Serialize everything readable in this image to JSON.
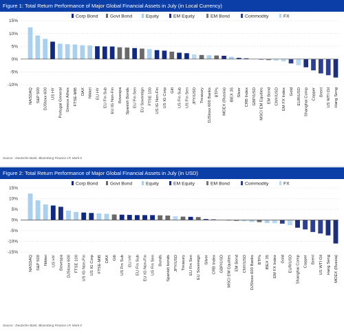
{
  "colors": {
    "title_bg": "#0c3ea8",
    "corp_bond": "#102a83",
    "govt_bond": "#6a6a6a",
    "equity": "#a9d0ee",
    "em_equity": "#1b2f7e",
    "em_bond": "#767676",
    "commodity": "#2e3f8f",
    "fx": "#b7d9f3"
  },
  "panels": [
    {
      "title": "Figure 1: Total Return Performance of Major Global Financial Assets in July (in Local Currency)",
      "source": "Source : Deutsche Bank, Bloomberg Finance LP, Mark-it"
    },
    {
      "title": "Figure 2: Total Return Performance of Major Global Financial Assets in July (in USD)",
      "source": "Source : Deutsche Bank, Bloomberg Finance LP, Mark-it"
    }
  ],
  "chart_data": [
    {
      "type": "bar",
      "title": "Figure 1: Total Return Performance of Major Global Financial Assets in July (in Local Currency)",
      "ylim": [
        -10,
        15
      ],
      "yticks": [
        -10,
        -5,
        0,
        5,
        10,
        15
      ],
      "ytick_labels": [
        "-10%",
        "-5%",
        "0%",
        "5%",
        "10%",
        "15%"
      ],
      "grid": true,
      "legend_position": "top",
      "legend": [
        {
          "key": "corp_bond",
          "label": "Corp Bond"
        },
        {
          "key": "govt_bond",
          "label": "Govt Bond"
        },
        {
          "key": "equity",
          "label": "Equity"
        },
        {
          "key": "em_equity",
          "label": "EM Equity"
        },
        {
          "key": "em_bond",
          "label": "EM Bond"
        },
        {
          "key": "commodity",
          "label": "Commodity"
        },
        {
          "key": "fx",
          "label": "FX"
        }
      ],
      "categories": [
        "NASDAQ",
        "S&P 500",
        "DJStoxx 600",
        "US HY",
        "Portugal General",
        "Greece Athex",
        "FTSE-MIB",
        "DAX",
        "Nikkei",
        "EU HY",
        "EU Fin Sub",
        "EU IG Non-Fin",
        "Bovespa",
        "Spanish Bonds",
        "EU Fin Sen",
        "EU Sovereign",
        "FTSE 100",
        "US IG Non-Fin",
        "US IG Corp",
        "Gilt",
        "US Fin Sub",
        "US Fin Sen",
        "JPY/USD",
        "Treasury",
        "DJStoxx 600 Banks",
        "BTPs",
        "MOEX (Russia)",
        "IBEX 35",
        "Silver",
        "CRB Index",
        "GBP/USD",
        "MSCI EM Equities",
        "EM Bond",
        "CNY/USD",
        "EM FX Index",
        "Gold",
        "EUR/USD",
        "Shanghai Comp",
        "Copper",
        "Brent",
        "US WTI Oil",
        "Hang Seng"
      ],
      "groups": [
        "equity",
        "equity",
        "equity",
        "corp_bond",
        "equity",
        "equity",
        "equity",
        "equity",
        "equity",
        "corp_bond",
        "corp_bond",
        "corp_bond",
        "govt_bond",
        "govt_bond",
        "corp_bond",
        "govt_bond",
        "equity",
        "corp_bond",
        "corp_bond",
        "govt_bond",
        "corp_bond",
        "corp_bond",
        "fx",
        "govt_bond",
        "equity",
        "govt_bond",
        "em_equity",
        "equity",
        "commodity",
        "commodity",
        "fx",
        "em_equity",
        "em_bond",
        "fx",
        "fx",
        "commodity",
        "fx",
        "em_equity",
        "commodity",
        "commodity",
        "commodity",
        "em_equity"
      ],
      "values": [
        12.4,
        9.2,
        7.9,
        6.8,
        6.0,
        5.8,
        5.7,
        5.4,
        5.3,
        5.0,
        4.9,
        4.9,
        4.6,
        4.5,
        4.3,
        4.1,
        3.9,
        3.5,
        3.3,
        2.9,
        2.5,
        2.3,
        1.8,
        1.6,
        1.5,
        1.4,
        1.3,
        0.9,
        0.5,
        0.3,
        -0.1,
        -0.2,
        -0.4,
        -0.6,
        -0.9,
        -1.7,
        -2.4,
        -3.2,
        -4.4,
        -5.6,
        -6.3,
        -7.2
      ]
    },
    {
      "type": "bar",
      "title": "Figure 2: Total Return Performance of Major Global Financial Assets in July (in USD)",
      "ylim": [
        -15,
        15
      ],
      "yticks": [
        -15,
        -10,
        -5,
        0,
        5,
        10,
        15
      ],
      "ytick_labels": [
        "-15%",
        "-10%",
        "-5%",
        "0%",
        "5%",
        "10%",
        "15%"
      ],
      "grid": true,
      "legend_position": "top",
      "legend": [
        {
          "key": "corp_bond",
          "label": "Corp Bond"
        },
        {
          "key": "govt_bond",
          "label": "Govt Bond"
        },
        {
          "key": "equity",
          "label": "Equity"
        },
        {
          "key": "em_equity",
          "label": "EM Equity"
        },
        {
          "key": "em_bond",
          "label": "EM Bond"
        },
        {
          "key": "commodity",
          "label": "Commodity"
        },
        {
          "key": "fx",
          "label": "FX"
        }
      ],
      "categories": [
        "NASDAQ",
        "S&P 500",
        "Nikkei",
        "US HY",
        "Bovespa",
        "DJStoxx 600",
        "FTSE 100",
        "US IG Non-Fin",
        "US IG Corp",
        "FTSE-MIB",
        "DAX",
        "Gilt",
        "US Fin Sub",
        "EU HY",
        "EU Fin Sub",
        "EU IG Non-Fin",
        "US Fin Sen",
        "Bunds",
        "Spanish bonds",
        "JPY/USD",
        "Treasury",
        "EU Fin Sen",
        "EU Sovereign",
        "Silver",
        "CRB Index",
        "GBP/USD",
        "MSCI EM Equities",
        "EM Bond",
        "CNY/USD",
        "DJStoxx 600 Banks",
        "BTPs",
        "IBEX 35",
        "EM FX Index",
        "Gold",
        "EUR/USD",
        "Shanghai Comp",
        "Copper",
        "Brent",
        "US WTI Oil",
        "Hang Seng",
        "MOEX (Russia)"
      ],
      "groups": [
        "equity",
        "equity",
        "equity",
        "corp_bond",
        "em_equity",
        "equity",
        "equity",
        "corp_bond",
        "corp_bond",
        "equity",
        "equity",
        "govt_bond",
        "corp_bond",
        "corp_bond",
        "corp_bond",
        "corp_bond",
        "corp_bond",
        "govt_bond",
        "govt_bond",
        "fx",
        "govt_bond",
        "corp_bond",
        "govt_bond",
        "commodity",
        "commodity",
        "fx",
        "em_equity",
        "em_bond",
        "fx",
        "equity",
        "govt_bond",
        "equity",
        "fx",
        "commodity",
        "fx",
        "em_equity",
        "commodity",
        "commodity",
        "commodity",
        "em_equity",
        "em_equity"
      ],
      "values": [
        12.4,
        9.2,
        7.3,
        6.8,
        6.2,
        4.4,
        3.8,
        3.5,
        3.3,
        3.1,
        2.9,
        2.6,
        2.5,
        2.4,
        2.3,
        2.3,
        2.3,
        2.2,
        2.1,
        1.8,
        1.6,
        1.5,
        1.4,
        0.5,
        0.3,
        -0.1,
        -0.2,
        -0.4,
        -0.6,
        -0.9,
        -1.0,
        -1.4,
        -1.5,
        -1.7,
        -2.4,
        -3.6,
        -4.4,
        -5.6,
        -6.3,
        -7.2,
        -11.0
      ]
    }
  ]
}
